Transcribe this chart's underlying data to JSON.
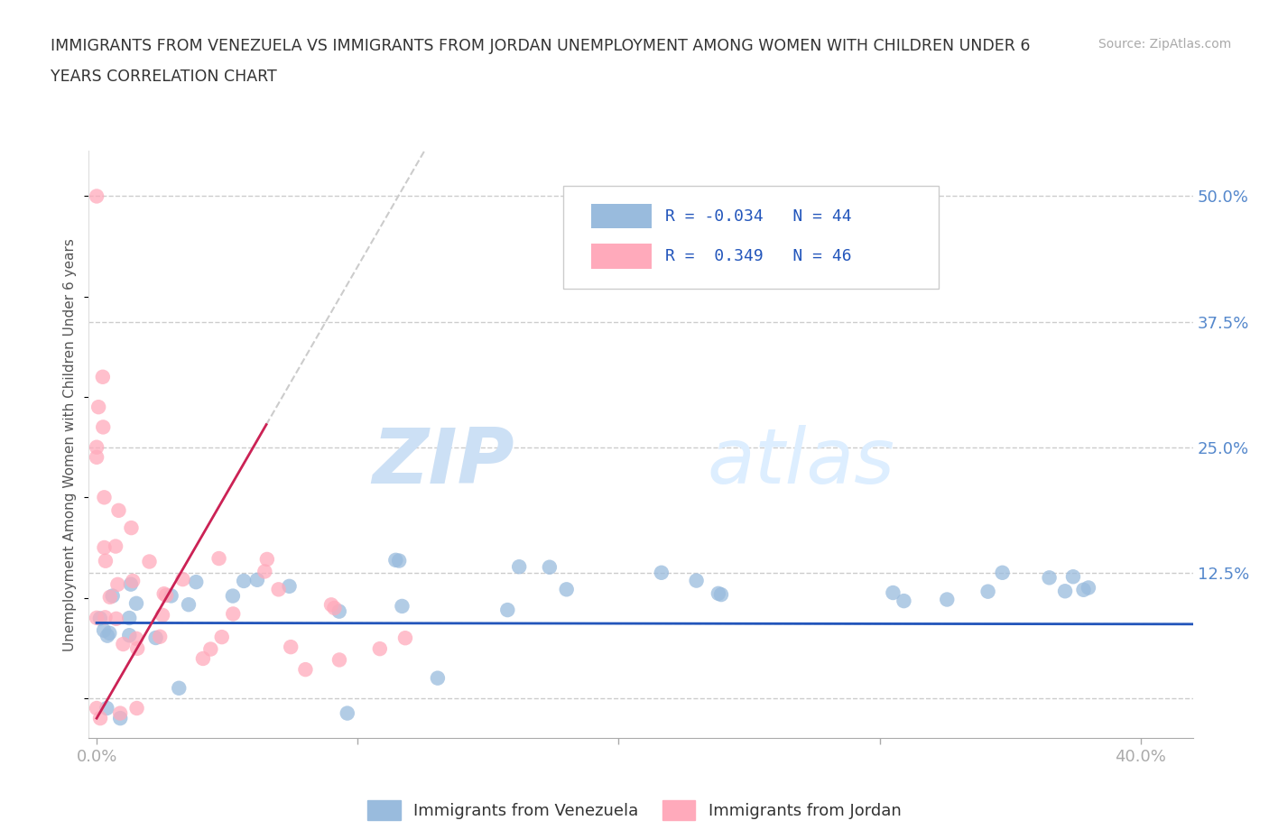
{
  "title_line1": "IMMIGRANTS FROM VENEZUELA VS IMMIGRANTS FROM JORDAN UNEMPLOYMENT AMONG WOMEN WITH CHILDREN UNDER 6",
  "title_line2": "YEARS CORRELATION CHART",
  "source_text": "Source: ZipAtlas.com",
  "watermark_zip": "ZIP",
  "watermark_atlas": "atlas",
  "ylabel": "Unemployment Among Women with Children Under 6 years",
  "xlim": [
    -0.003,
    0.42
  ],
  "ylim": [
    -0.04,
    0.545
  ],
  "xticks": [
    0.0,
    0.1,
    0.2,
    0.3,
    0.4
  ],
  "xticklabels_show": [
    "0.0%",
    "",
    "",
    "",
    "40.0%"
  ],
  "yticks_right": [
    0.0,
    0.125,
    0.25,
    0.375,
    0.5
  ],
  "ytick_labels_right": [
    "",
    "12.5%",
    "25.0%",
    "37.5%",
    "50.0%"
  ],
  "grid_color": "#cccccc",
  "blue_scatter_color": "#99bbdd",
  "pink_scatter_color": "#ffaabb",
  "blue_line_color": "#2255bb",
  "pink_line_color": "#cc2255",
  "dash_color": "#cccccc",
  "legend_R_blue": "R = -0.034",
  "legend_N_blue": "N = 44",
  "legend_R_pink": "R =  0.349",
  "legend_N_pink": "N = 46",
  "label_blue": "Immigrants from Venezuela",
  "label_pink": "Immigrants from Jordan",
  "title_color": "#333333",
  "tick_label_color": "#5588cc",
  "blue_trend_y_intercept": 0.075,
  "blue_trend_slope": -0.003,
  "pink_trend_y_intercept": -0.02,
  "pink_trend_slope": 4.5
}
